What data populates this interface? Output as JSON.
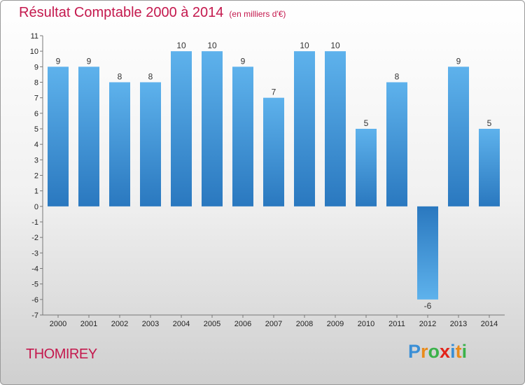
{
  "title": "Résultat Comptable 2000 à 2014",
  "unit": "(en milliers d'€)",
  "commune": "THOMIREY",
  "logo": {
    "letters": [
      "P",
      "r",
      "o",
      "x",
      "i",
      "t",
      "i"
    ],
    "colors": [
      "#3a8fd6",
      "#e98b1b",
      "#3ab24a",
      "#e2231a",
      "#3a8fd6",
      "#e98b1b",
      "#3ab24a"
    ]
  },
  "colors": {
    "title": "#c4184d",
    "bar_light": "#5eb2ec",
    "bar_dark": "#2a78bf"
  },
  "chart_data": {
    "type": "bar",
    "categories": [
      "2000",
      "2001",
      "2002",
      "2003",
      "2004",
      "2005",
      "2006",
      "2007",
      "2008",
      "2009",
      "2010",
      "2011",
      "2012",
      "2013",
      "2014"
    ],
    "values": [
      9,
      9,
      8,
      8,
      10,
      10,
      9,
      7,
      10,
      10,
      5,
      8,
      -6,
      9,
      5
    ],
    "ylim": [
      -7,
      11
    ],
    "yticks": [
      "-7",
      "-6",
      "-5",
      "-4",
      "-3",
      "-2",
      "-1",
      "0",
      "1",
      "2",
      "3",
      "4",
      "5",
      "6",
      "7",
      "8",
      "9",
      "10",
      "11"
    ],
    "title": "Résultat Comptable 2000 à 2014",
    "xlabel": "",
    "ylabel": "",
    "grid": false,
    "legend": "none"
  }
}
